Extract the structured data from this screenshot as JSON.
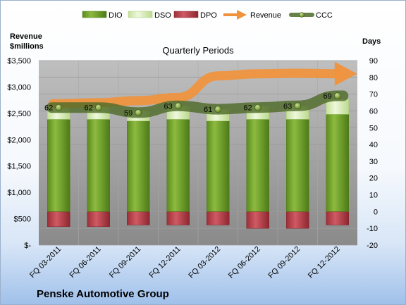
{
  "chart_data": {
    "type": "bar",
    "title": "Penske Automotive Group",
    "subtitle": "Quarterly Periods",
    "categories": [
      "FQ 03-2011",
      "FQ 06-2011",
      "FQ 09-2011",
      "FQ 12-2011",
      "FQ 03-2012",
      "FQ 06-2012",
      "FQ 09-2012",
      "FQ 12-2012"
    ],
    "y_left_label_line1": "Revenue",
    "y_left_label_line2": "$millions",
    "y_right_label": "Days",
    "y_left_ticks": [
      "$-",
      "$500",
      "$1,000",
      "$1,500",
      "$2,000",
      "$2,500",
      "$3,000",
      "$3,500"
    ],
    "y_right_ticks": [
      "-20",
      "-10",
      "0",
      "10",
      "20",
      "30",
      "40",
      "50",
      "60",
      "70",
      "80",
      "90"
    ],
    "ylim_left": [
      0,
      3500
    ],
    "ylim_right": [
      -20,
      90
    ],
    "series": [
      {
        "name": "DIO",
        "axis": "right",
        "kind": "stacked-bar",
        "color": "#6f9a2e",
        "values": [
          55,
          55,
          54,
          55,
          54,
          55,
          55,
          58
        ]
      },
      {
        "name": "DSO",
        "axis": "right",
        "kind": "stacked-bar",
        "color": "#d8ecb8",
        "values": [
          8,
          8,
          6,
          8,
          7,
          8,
          8,
          9
        ]
      },
      {
        "name": "DPO",
        "axis": "right",
        "kind": "negative-bar",
        "color": "#b8414a",
        "values": [
          -9,
          -9,
          -8,
          -8,
          -8,
          -10,
          -10,
          -8
        ]
      },
      {
        "name": "Revenue",
        "axis": "left",
        "kind": "arrow",
        "color": "#f0923c",
        "values": [
          2680,
          2700,
          2740,
          2800,
          3210,
          3250,
          3260,
          3250
        ]
      },
      {
        "name": "CCC",
        "axis": "right",
        "kind": "line",
        "color": "#4f6b2a",
        "values": [
          62,
          62,
          59,
          63,
          61,
          62,
          63,
          69
        ],
        "labels": [
          "62",
          "62",
          "59",
          "63",
          "61",
          "62",
          "63",
          "69"
        ]
      }
    ],
    "grid": true,
    "legend_position": "top"
  }
}
